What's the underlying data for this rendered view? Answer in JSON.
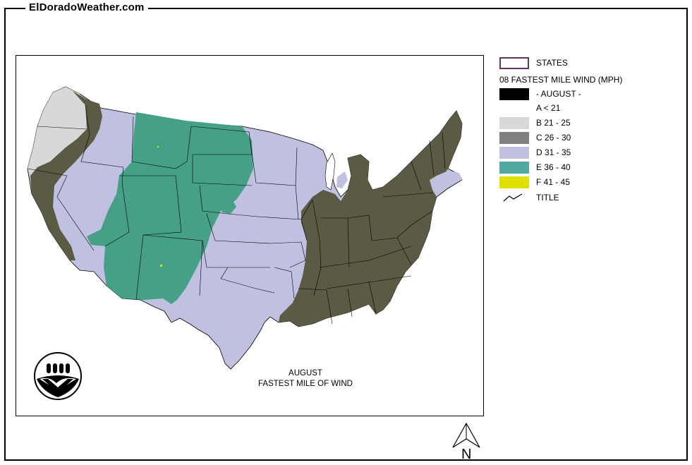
{
  "site": {
    "title": "ElDoradoWeather.com"
  },
  "map": {
    "title_line1": "AUGUST",
    "title_line2": "FASTEST MILE OF WIND"
  },
  "legend": {
    "states_label": "STATES",
    "layer_title": "08 FASTEST MILE WIND (MPH)",
    "month_label": "- AUGUST -",
    "title_label": "TITLE",
    "classes": [
      {
        "label": "A < 21",
        "color": "#ffffff",
        "show_swatch": false
      },
      {
        "label": "B 21 - 25",
        "color": "#d8d8d8",
        "show_swatch": true
      },
      {
        "label": "C 26 - 30",
        "color": "#808080",
        "show_swatch": true
      },
      {
        "label": "D 31 - 35",
        "color": "#c0c0e0",
        "show_swatch": true
      },
      {
        "label": "E 36 - 40",
        "color": "#50a8a0",
        "show_swatch": true
      },
      {
        "label": "F 41 - 45",
        "color": "#e0e000",
        "show_swatch": true
      }
    ]
  },
  "colors": {
    "west_coast_gray": "#d8d8d8",
    "lavender": "#c0c0e0",
    "teal": "#46a088",
    "olive": "#5a5a45",
    "states_outline": "#663366",
    "month_swatch": "#000000"
  },
  "compass": {
    "label": "N"
  }
}
